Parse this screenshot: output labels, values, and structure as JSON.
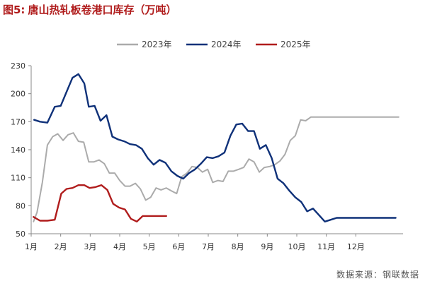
{
  "title_label": "图5:",
  "title_text": "唐山热轧板卷港口库存（万吨）",
  "source": "数据来源：钢联数据",
  "chart_data": {
    "type": "line",
    "title": "唐山热轧板卷港口库存（万吨）",
    "xlabel": "",
    "ylabel": "万吨",
    "ylim": [
      50,
      230
    ],
    "yticks": [
      50,
      80,
      110,
      140,
      170,
      200,
      230
    ],
    "xlim": [
      1,
      13.6
    ],
    "months": [
      "1月",
      "2月",
      "3月",
      "4月",
      "5月",
      "6月",
      "7月",
      "8月",
      "9月",
      "10月",
      "11月",
      "12月"
    ],
    "legend_position": "top-center",
    "grid": false,
    "series": [
      {
        "name": "2023年",
        "color": "#ababab",
        "x": [
          1.08,
          1.2,
          1.38,
          1.55,
          1.73,
          1.9,
          2.08,
          2.25,
          2.43,
          2.6,
          2.78,
          2.95,
          3.13,
          3.3,
          3.48,
          3.65,
          3.83,
          4.0,
          4.18,
          4.35,
          4.53,
          4.7,
          4.88,
          5.05,
          5.23,
          5.4,
          5.58,
          5.75,
          5.93,
          6.1,
          6.28,
          6.45,
          6.63,
          6.8,
          6.98,
          7.15,
          7.33,
          7.5,
          7.68,
          7.85,
          8.03,
          8.2,
          8.38,
          8.55,
          8.73,
          8.9,
          9.08,
          9.25,
          9.43,
          9.6,
          9.78,
          9.95,
          10.13,
          10.3,
          10.48,
          10.65,
          10.83,
          11.0,
          11.18,
          11.35,
          11.53,
          11.7,
          11.88,
          12.05,
          12.23,
          12.4,
          12.58,
          12.75,
          12.93,
          13.1,
          13.28,
          13.45
        ],
        "values": [
          63,
          73,
          105,
          145,
          154,
          157,
          150,
          156,
          158,
          149,
          148,
          127,
          127,
          129,
          125,
          115,
          115,
          107,
          101,
          101,
          104,
          98,
          86,
          89,
          99,
          97,
          99,
          96,
          93,
          111,
          115,
          122,
          121,
          116,
          119,
          105,
          107,
          106,
          117,
          117,
          119,
          121,
          130,
          127,
          116,
          121,
          122,
          124,
          128,
          135,
          150,
          155,
          172,
          171,
          175,
          175,
          175,
          175,
          175,
          175,
          175,
          175,
          175,
          175,
          175,
          175,
          175,
          175,
          175,
          175,
          175,
          175
        ]
      },
      {
        "name": "2024年",
        "color": "#0f3179",
        "x": [
          1.1,
          1.3,
          1.55,
          1.8,
          2.0,
          2.2,
          2.4,
          2.6,
          2.8,
          2.95,
          3.15,
          3.35,
          3.55,
          3.75,
          3.95,
          4.15,
          4.35,
          4.55,
          4.75,
          4.95,
          5.15,
          5.35,
          5.55,
          5.75,
          5.95,
          6.15,
          6.35,
          6.55,
          6.75,
          6.95,
          7.15,
          7.35,
          7.55,
          7.75,
          7.95,
          8.15,
          8.35,
          8.55,
          8.75,
          8.95,
          9.15,
          9.35,
          9.55,
          9.75,
          9.95,
          10.15,
          10.35,
          10.55,
          10.75,
          10.95,
          11.15,
          11.35,
          11.55,
          11.75,
          11.95,
          12.15,
          12.35,
          12.55,
          12.75,
          12.95,
          13.15,
          13.35
        ],
        "values": [
          172,
          170,
          169,
          186,
          187,
          202,
          217,
          221,
          211,
          186,
          187,
          171,
          177,
          154,
          151,
          149,
          146,
          145,
          141,
          131,
          124,
          129,
          126,
          117,
          112,
          109,
          115,
          119,
          125,
          132,
          131,
          133,
          137,
          155,
          167,
          168,
          160,
          160,
          141,
          145,
          131,
          109,
          104,
          96,
          89,
          84,
          74,
          77,
          70,
          63,
          65,
          67,
          67,
          67,
          67,
          67,
          67,
          67,
          67,
          67,
          67,
          67
        ]
      },
      {
        "name": "2025年",
        "color": "#b01c1c",
        "x": [
          1.08,
          1.3,
          1.55,
          1.8,
          2.02,
          2.2,
          2.4,
          2.6,
          2.8,
          2.98,
          3.18,
          3.38,
          3.58,
          3.78,
          3.98,
          4.18,
          4.38,
          4.58,
          4.78,
          4.98,
          5.18,
          5.38,
          5.58
        ],
        "values": [
          68,
          64,
          64,
          65,
          93,
          98,
          99,
          102,
          102,
          99,
          100,
          102,
          97,
          82,
          78,
          76,
          66,
          63,
          69,
          69,
          69,
          69,
          69
        ]
      }
    ]
  }
}
